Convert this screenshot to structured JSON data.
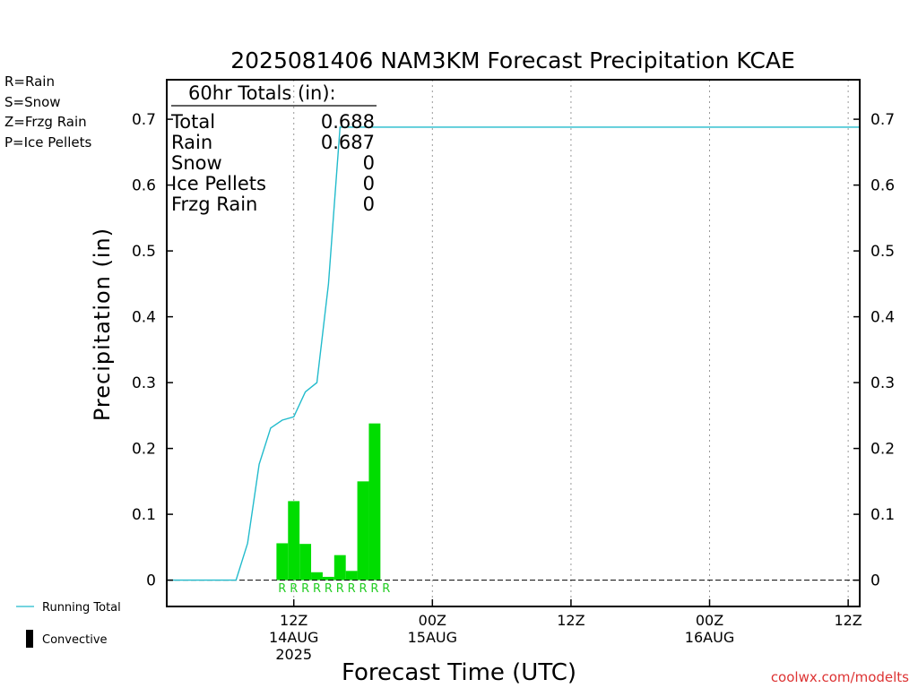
{
  "chart_data": {
    "type": "bar",
    "title": "2025081406 NAM3KM Forecast Precipitation KCAE",
    "xlabel": "Forecast Time (UTC)",
    "ylabel": "Precipitation (in)",
    "ylim": [
      -0.04,
      0.76
    ],
    "y_ticks": [
      0,
      0.1,
      0.2,
      0.3,
      0.4,
      0.5,
      0.6,
      0.7
    ],
    "y_tick_labels": [
      "0",
      "0.1",
      "0.2",
      "0.3",
      "0.4",
      "0.5",
      "0.6",
      "0.7"
    ],
    "x_range_hours_after_06z_14aug": [
      -5,
      55
    ],
    "x_ticks": [
      {
        "hour": 6,
        "line1": "12Z",
        "line2": "14AUG",
        "line3": "2025"
      },
      {
        "hour": 18,
        "line1": "00Z",
        "line2": "15AUG",
        "line3": ""
      },
      {
        "hour": 30,
        "line1": "12Z",
        "line2": "",
        "line3": ""
      },
      {
        "hour": 42,
        "line1": "00Z",
        "line2": "16AUG",
        "line3": ""
      },
      {
        "hour": 54,
        "line1": "12Z",
        "line2": "",
        "line3": ""
      }
    ],
    "legend_top_left": [
      {
        "label": "R=Rain",
        "color": "#22cc22"
      },
      {
        "label": "S=Snow",
        "color": "#3355ff"
      },
      {
        "label": "Z=Frzg Rain",
        "color": "#ff8833"
      },
      {
        "label": "P=Ice Pellets",
        "color": "#ee2277"
      }
    ],
    "legend_bottom_left": [
      {
        "label": "Running Total",
        "kind": "line",
        "color": "#22bbcc"
      },
      {
        "label": "Convective",
        "kind": "bar",
        "color": "#000000"
      }
    ],
    "totals_box": {
      "heading": "60hr Totals (in):",
      "rows": [
        {
          "label": "Total",
          "value": "0.688"
        },
        {
          "label": "Rain",
          "value": "0.687"
        },
        {
          "label": "Snow",
          "value": "0"
        },
        {
          "label": "Ice Pellets",
          "value": "0"
        },
        {
          "label": "Frzg Rain",
          "value": "0"
        }
      ]
    },
    "precip_bars": {
      "color": "#00dd00",
      "hours": [
        5,
        6,
        7,
        8,
        9,
        10,
        11,
        12,
        13,
        14
      ],
      "values": [
        0.056,
        0.12,
        0.055,
        0.012,
        0.005,
        0.038,
        0.014,
        0.15,
        0.238,
        0.0
      ],
      "type_labels": [
        "R",
        "R",
        "R",
        "R",
        "R",
        "R",
        "R",
        "R",
        "R",
        "R"
      ],
      "type_label_color": "#22cc22"
    },
    "running_total": {
      "color": "#22bbcc",
      "hours": [
        -5,
        -2,
        0,
        1,
        2,
        3,
        4,
        5,
        6,
        7,
        8,
        9,
        10,
        11,
        12,
        13,
        14,
        55
      ],
      "values": [
        0,
        0,
        0,
        0,
        0.056,
        0.176,
        0.231,
        0.243,
        0.248,
        0.286,
        0.3,
        0.45,
        0.688,
        0.688,
        0.688,
        0.688,
        0.688,
        0.688
      ]
    },
    "credit": "coolwx.com/modelts",
    "credit_color": "#dd3333"
  }
}
